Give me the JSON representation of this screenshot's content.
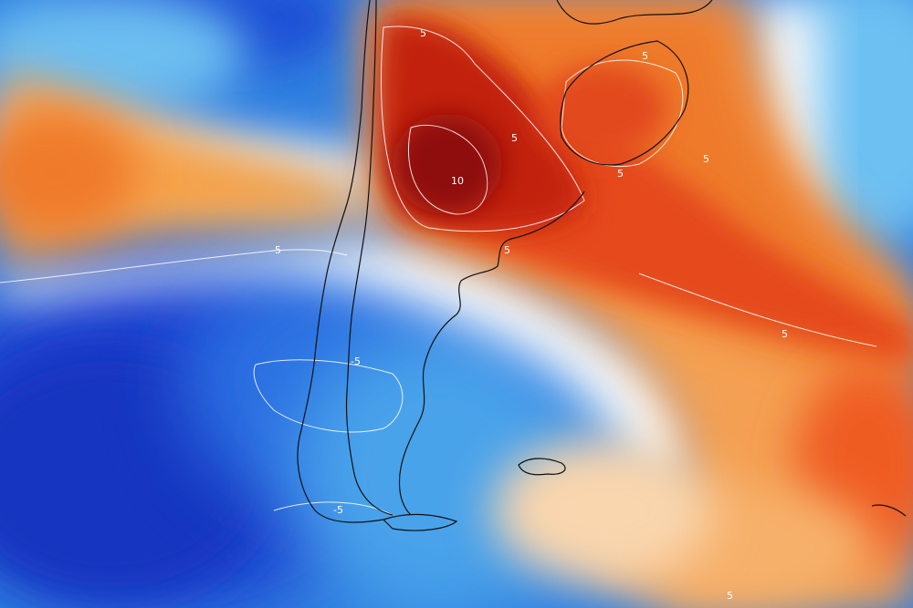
{
  "map": {
    "subject": "temperature anomaly field over southern South America",
    "colors": {
      "strong_warm": "#b0140c",
      "warm": "#e8461a",
      "mild_warm": "#f39a3a",
      "light_warm": "#f8c99a",
      "neutral": "#f4f8fb",
      "light_cold": "#9fd3f2",
      "cold": "#3d9be8",
      "strong_cold": "#1f5fd8",
      "deep_cold": "#1838c8",
      "coastline": "#111111",
      "contour": "#ffffff"
    },
    "contour_labels": [
      {
        "id": "warm-north-5",
        "text": "5"
      },
      {
        "id": "warm-core-10",
        "text": "10"
      },
      {
        "id": "warm-uruguay-5",
        "text": "5"
      },
      {
        "id": "warm-east-5",
        "text": "5"
      },
      {
        "id": "warm-coast-5",
        "text": "5"
      },
      {
        "id": "warm-far-east-5",
        "text": "5"
      },
      {
        "id": "warm-ne-5",
        "text": "5"
      },
      {
        "id": "warm-plains-5",
        "text": "5"
      },
      {
        "id": "warm-bottom-5",
        "text": "5"
      },
      {
        "id": "cold-west-5",
        "text": "-5"
      },
      {
        "id": "cold-patagonia-5",
        "text": "-5"
      },
      {
        "id": "cold-tierra-5",
        "text": "-5"
      }
    ]
  }
}
